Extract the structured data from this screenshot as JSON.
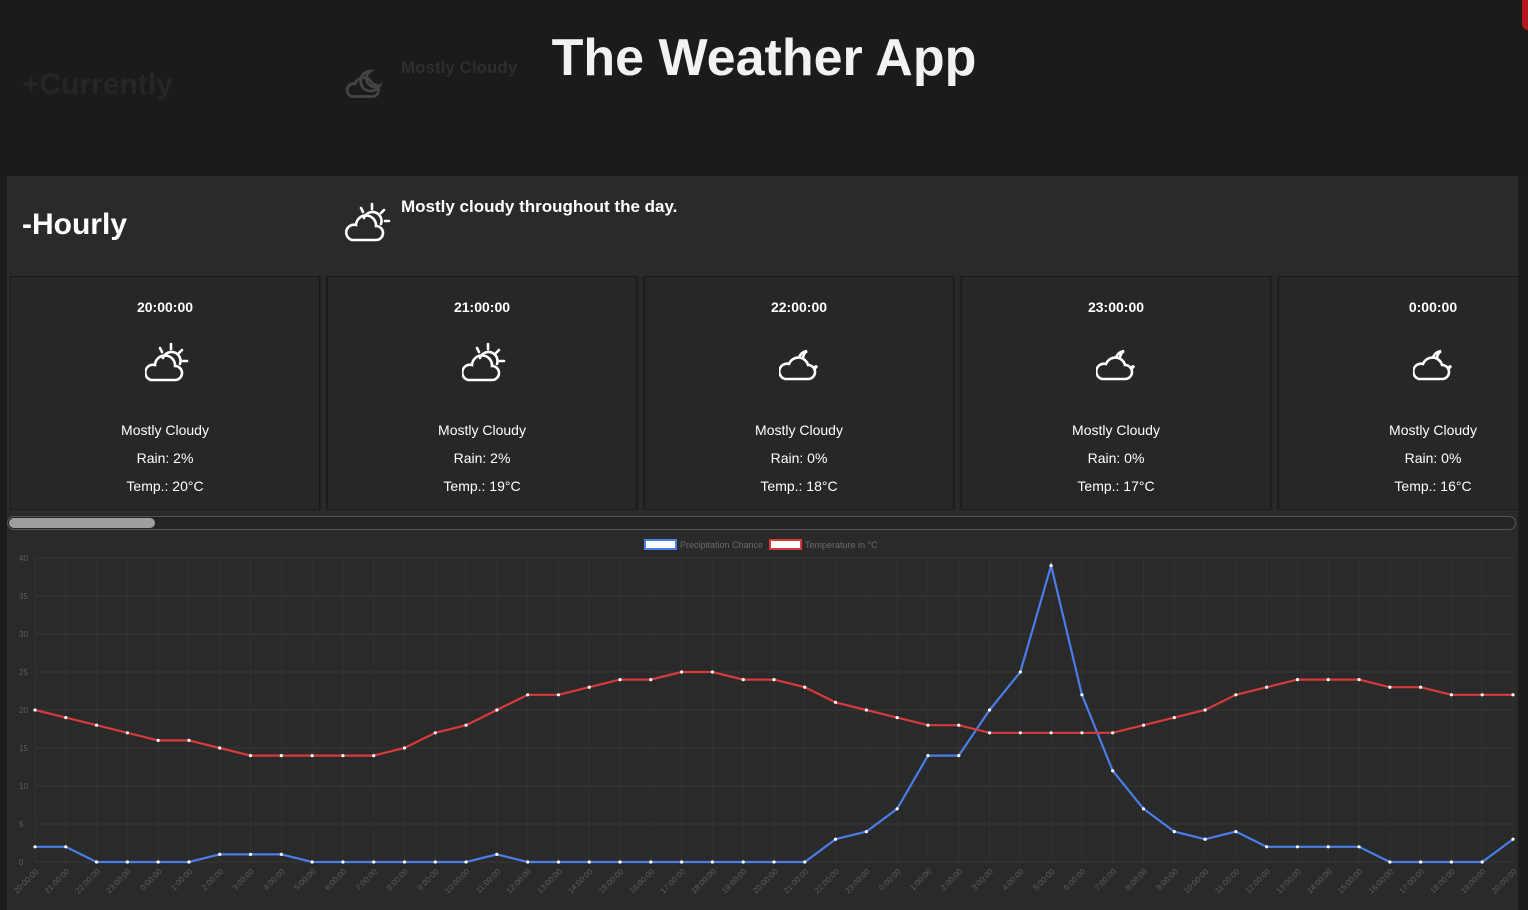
{
  "app": {
    "title": "The Weather App"
  },
  "currently": {
    "title": "+Currently",
    "summary": "Mostly Cloudy",
    "icon": "partly-cloudy-night-icon"
  },
  "hourly": {
    "title": "-Hourly",
    "summary": "Mostly cloudy throughout the day.",
    "summary_icon": "partly-cloudy-day-icon",
    "cards": [
      {
        "time": "20:00:00",
        "icon": "partly-cloudy-day-icon",
        "summary": "Mostly Cloudy",
        "rain": "Rain: 2%",
        "temp": "Temp.: 20°C"
      },
      {
        "time": "21:00:00",
        "icon": "partly-cloudy-day-icon",
        "summary": "Mostly Cloudy",
        "rain": "Rain: 2%",
        "temp": "Temp.: 19°C"
      },
      {
        "time": "22:00:00",
        "icon": "partly-cloudy-night-icon",
        "summary": "Mostly Cloudy",
        "rain": "Rain: 0%",
        "temp": "Temp.: 18°C"
      },
      {
        "time": "23:00:00",
        "icon": "partly-cloudy-night-icon",
        "summary": "Mostly Cloudy",
        "rain": "Rain: 0%",
        "temp": "Temp.: 17°C"
      },
      {
        "time": "0:00:00",
        "icon": "partly-cloudy-night-icon",
        "summary": "Mostly Cloudy",
        "rain": "Rain: 0%",
        "temp": "Temp.: 16°C"
      }
    ],
    "scroll_position": 0.0
  },
  "chart_data": {
    "type": "line",
    "legend_position": "top",
    "grid": true,
    "ylim": [
      0,
      40
    ],
    "yticks": [
      0,
      5,
      10,
      15,
      20,
      25,
      30,
      35,
      40
    ],
    "x": [
      "20:00:00",
      "21:00:00",
      "22:00:00",
      "23:00:00",
      "0:00:00",
      "1:00:00",
      "2:00:00",
      "3:00:00",
      "4:00:00",
      "5:00:00",
      "6:00:00",
      "7:00:00",
      "8:00:00",
      "9:00:00",
      "10:00:00",
      "11:00:00",
      "12:00:00",
      "13:00:00",
      "14:00:00",
      "15:00:00",
      "16:00:00",
      "17:00:00",
      "18:00:00",
      "19:00:00",
      "20:00:00",
      "21:00:00",
      "22:00:00",
      "23:00:00",
      "0:00:00",
      "1:00:00",
      "2:00:00",
      "3:00:00",
      "4:00:00",
      "5:00:00",
      "6:00:00",
      "7:00:00",
      "8:00:00",
      "9:00:00",
      "10:00:00",
      "11:00:00",
      "12:00:00",
      "13:00:00",
      "14:00:00",
      "15:00:00",
      "16:00:00",
      "17:00:00",
      "18:00:00",
      "19:00:00",
      "20:00:00"
    ],
    "series": [
      {
        "name": "Precipitation Chance",
        "color": "#4a7de8",
        "values": [
          2,
          2,
          0,
          0,
          0,
          0,
          1,
          1,
          1,
          0,
          0,
          0,
          0,
          0,
          0,
          1,
          0,
          0,
          0,
          0,
          0,
          0,
          0,
          0,
          0,
          0,
          3,
          4,
          7,
          14,
          14,
          20,
          25,
          39,
          22,
          12,
          7,
          4,
          3,
          4,
          2,
          2,
          2,
          2,
          0,
          0,
          0,
          0,
          3
        ]
      },
      {
        "name": "Temperature in °C",
        "color": "#d63a3a",
        "values": [
          20,
          19,
          18,
          17,
          16,
          16,
          15,
          14,
          14,
          14,
          14,
          14,
          15,
          17,
          18,
          20,
          22,
          22,
          23,
          24,
          24,
          25,
          25,
          24,
          24,
          23,
          21,
          20,
          19,
          18,
          18,
          17,
          17,
          17,
          17,
          17,
          18,
          19,
          20,
          22,
          23,
          24,
          24,
          24,
          23,
          23,
          22,
          22,
          22
        ]
      }
    ]
  }
}
